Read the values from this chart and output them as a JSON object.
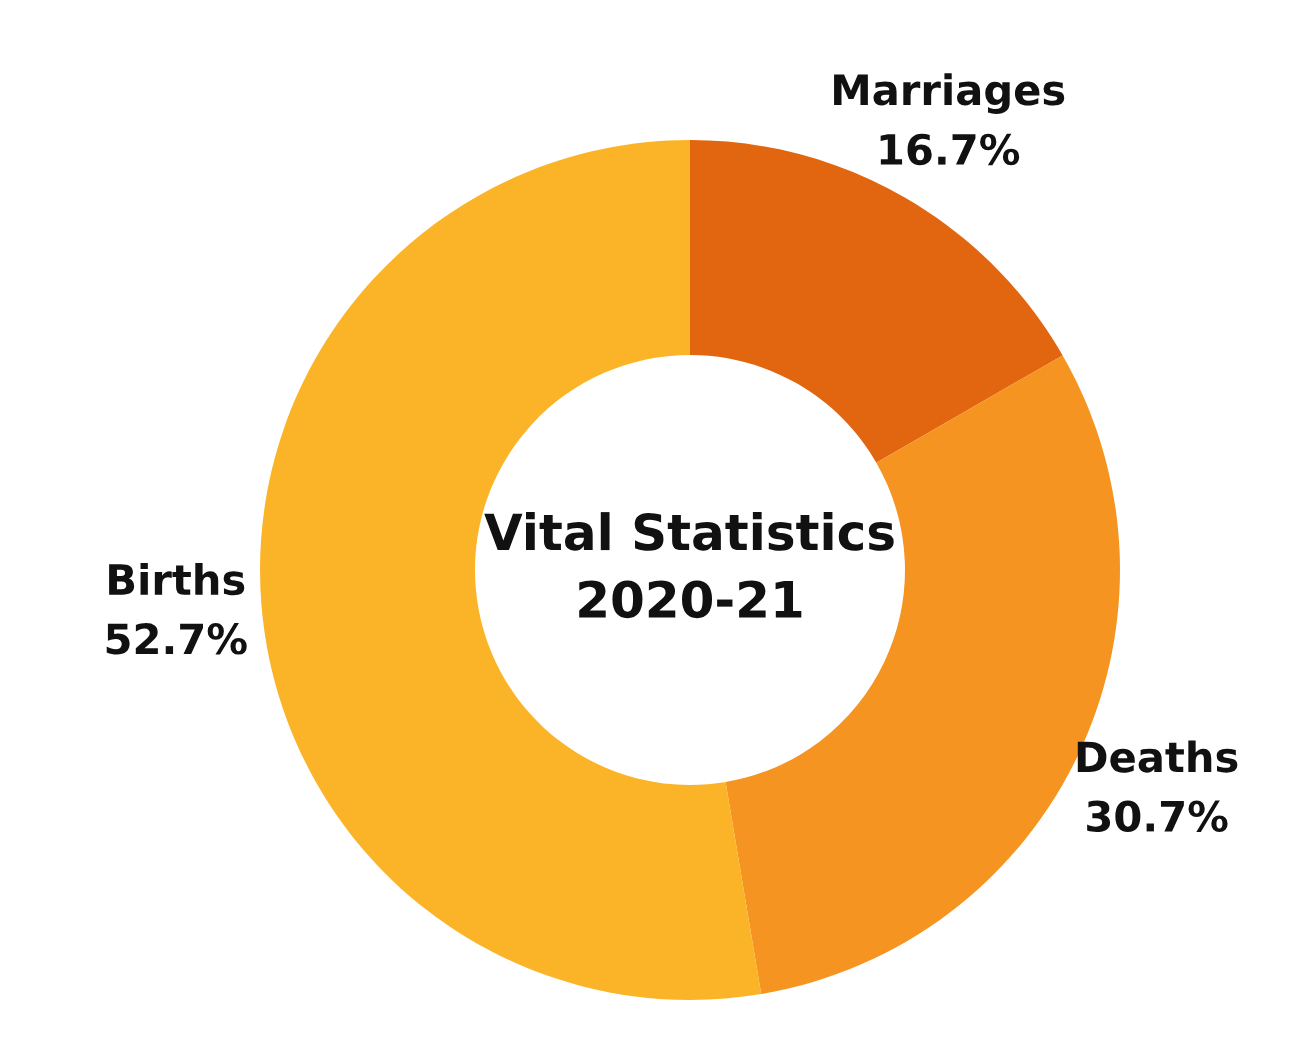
{
  "chart_data": {
    "type": "donut",
    "title": "Vital Statistics\n2020-21",
    "categories": [
      "Marriages",
      "Deaths",
      "Births"
    ],
    "values": [
      16.7,
      30.7,
      52.7
    ],
    "value_labels": [
      "16.7%",
      "30.7%",
      "52.7%"
    ],
    "colors": [
      "#e2650f",
      "#f59420",
      "#fbb427"
    ],
    "legend": false
  }
}
